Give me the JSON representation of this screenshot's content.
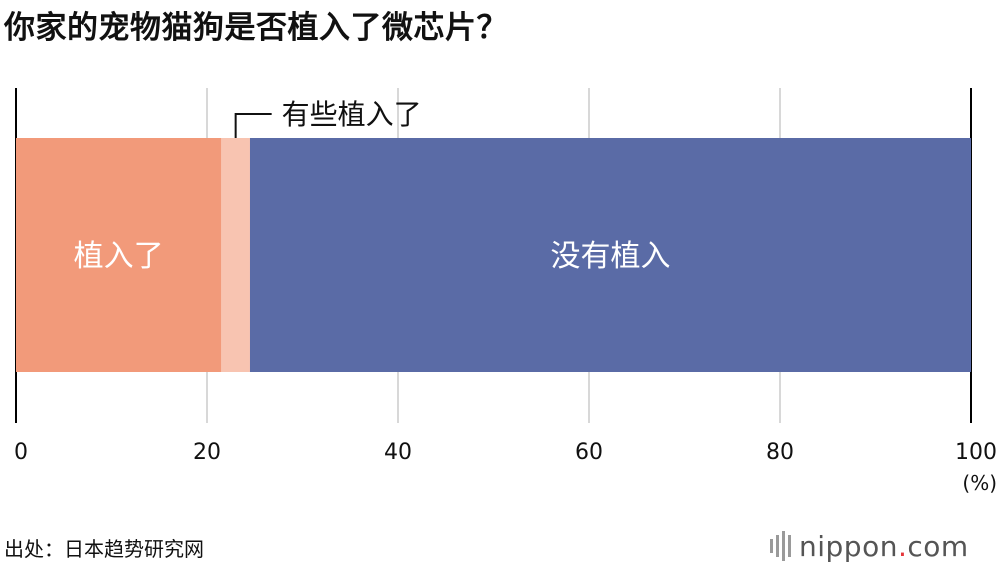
{
  "title": "你家的宠物猫狗是否植入了微芯片？",
  "source": "出处：日本趋势研究网",
  "brand": {
    "name": "nippon",
    "dot": ".",
    "tld": "com"
  },
  "colors": {
    "implanted": "#F29A7A",
    "partial": "#F8C4B1",
    "not_implanted": "#5A6BA6",
    "grid": "#CCCCCC",
    "axis": "#000000",
    "brand_dot": "#E5363A"
  },
  "chart_data": {
    "type": "bar",
    "orientation": "horizontal-stacked",
    "unit": "(%)",
    "xlim": [
      0,
      100
    ],
    "ticks": [
      0,
      20,
      40,
      60,
      80,
      100
    ],
    "grid": true,
    "series": [
      {
        "name": "植入了",
        "value": 21.5,
        "color": "#F29A7A",
        "label_position": "inside"
      },
      {
        "name": "有些植入了",
        "value": 3.0,
        "color": "#F8C4B1",
        "label_position": "callout-above"
      },
      {
        "name": "没有植入",
        "value": 75.5,
        "color": "#5A6BA6",
        "label_position": "inside"
      }
    ]
  }
}
